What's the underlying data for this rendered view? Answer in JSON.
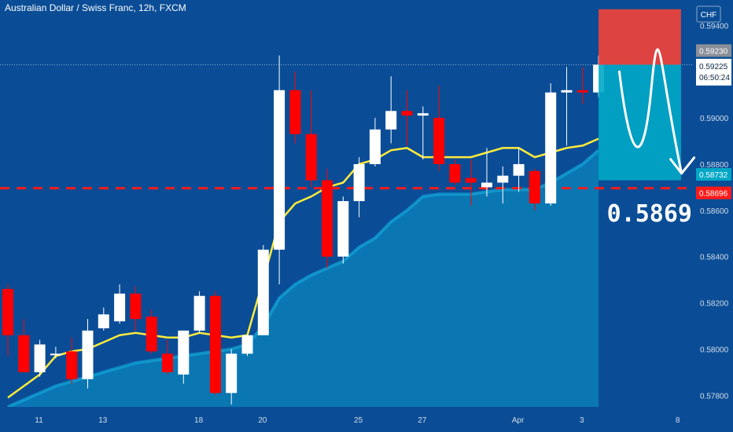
{
  "title": "Australian Dollar / Swiss Franc, 12h, FXCM",
  "currency_badge": "CHF",
  "countdown": "06:50:24",
  "big_label": "0.5869",
  "colors": {
    "background": "#0a4d96",
    "bull": "#ffffff",
    "bear": "#ff0000",
    "ma_line": "#ffeb3b",
    "area_fill": "#0a7fb8",
    "area_edge": "#12a8d8",
    "stop_zone": "#f44336",
    "target_zone": "#00a8c6",
    "level_line": "#ff1a1a"
  },
  "chart_data": {
    "type": "candlestick",
    "title": "Australian Dollar / Swiss Franc, 12h, FXCM",
    "xlabel": "",
    "ylabel": "",
    "ylim": [
      0.5775,
      0.5951
    ],
    "grid": false,
    "x_ticks": [
      {
        "label": "11",
        "index": 2
      },
      {
        "label": "13",
        "index": 6
      },
      {
        "label": "18",
        "index": 12
      },
      {
        "label": "20",
        "index": 16
      },
      {
        "label": "25",
        "index": 22
      },
      {
        "label": "27",
        "index": 26
      },
      {
        "label": "Apr",
        "index": 32
      },
      {
        "label": "3",
        "index": 36
      },
      {
        "label": "8",
        "index": 42
      }
    ],
    "y_ticks": [
      "0.57800",
      "0.58000",
      "0.58200",
      "0.58400",
      "0.58600",
      "0.58800",
      "0.59000",
      "0.59400"
    ],
    "candles": [
      {
        "o": 0.5826,
        "h": 0.5828,
        "l": 0.5797,
        "c": 0.5806
      },
      {
        "o": 0.5806,
        "h": 0.5813,
        "l": 0.579,
        "c": 0.579
      },
      {
        "o": 0.579,
        "h": 0.5804,
        "l": 0.5788,
        "c": 0.5802
      },
      {
        "o": 0.5798,
        "h": 0.5801,
        "l": 0.5796,
        "c": 0.5798
      },
      {
        "o": 0.5799,
        "h": 0.5805,
        "l": 0.5785,
        "c": 0.5787
      },
      {
        "o": 0.5787,
        "h": 0.5813,
        "l": 0.5783,
        "c": 0.5808
      },
      {
        "o": 0.5809,
        "h": 0.5818,
        "l": 0.5808,
        "c": 0.5815
      },
      {
        "o": 0.5812,
        "h": 0.5828,
        "l": 0.5811,
        "c": 0.5824
      },
      {
        "o": 0.5824,
        "h": 0.5827,
        "l": 0.5808,
        "c": 0.5813
      },
      {
        "o": 0.5814,
        "h": 0.5817,
        "l": 0.5798,
        "c": 0.5799
      },
      {
        "o": 0.5798,
        "h": 0.5804,
        "l": 0.5789,
        "c": 0.579
      },
      {
        "o": 0.5789,
        "h": 0.5808,
        "l": 0.5785,
        "c": 0.5808
      },
      {
        "o": 0.5808,
        "h": 0.5825,
        "l": 0.5807,
        "c": 0.5823
      },
      {
        "o": 0.5823,
        "h": 0.5825,
        "l": 0.578,
        "c": 0.5781
      },
      {
        "o": 0.5781,
        "h": 0.58,
        "l": 0.5776,
        "c": 0.5798
      },
      {
        "o": 0.5798,
        "h": 0.5806,
        "l": 0.5797,
        "c": 0.5806
      },
      {
        "o": 0.5806,
        "h": 0.5845,
        "l": 0.5806,
        "c": 0.5843
      },
      {
        "o": 0.5843,
        "h": 0.5927,
        "l": 0.5828,
        "c": 0.5912
      },
      {
        "o": 0.5912,
        "h": 0.592,
        "l": 0.5889,
        "c": 0.5893
      },
      {
        "o": 0.5893,
        "h": 0.5912,
        "l": 0.587,
        "c": 0.5873
      },
      {
        "o": 0.5873,
        "h": 0.5878,
        "l": 0.5835,
        "c": 0.584
      },
      {
        "o": 0.584,
        "h": 0.5866,
        "l": 0.5837,
        "c": 0.5864
      },
      {
        "o": 0.5864,
        "h": 0.5883,
        "l": 0.5857,
        "c": 0.588
      },
      {
        "o": 0.588,
        "h": 0.59,
        "l": 0.5879,
        "c": 0.5895
      },
      {
        "o": 0.5895,
        "h": 0.5918,
        "l": 0.5889,
        "c": 0.5903
      },
      {
        "o": 0.5903,
        "h": 0.5912,
        "l": 0.5888,
        "c": 0.5901
      },
      {
        "o": 0.5901,
        "h": 0.5905,
        "l": 0.5882,
        "c": 0.5902
      },
      {
        "o": 0.59,
        "h": 0.5914,
        "l": 0.5877,
        "c": 0.588
      },
      {
        "o": 0.588,
        "h": 0.5882,
        "l": 0.5871,
        "c": 0.5872
      },
      {
        "o": 0.5874,
        "h": 0.5882,
        "l": 0.5862,
        "c": 0.5872
      },
      {
        "o": 0.587,
        "h": 0.5887,
        "l": 0.5866,
        "c": 0.5872
      },
      {
        "o": 0.5872,
        "h": 0.5879,
        "l": 0.5863,
        "c": 0.5875
      },
      {
        "o": 0.5875,
        "h": 0.5887,
        "l": 0.5868,
        "c": 0.588
      },
      {
        "o": 0.5877,
        "h": 0.5878,
        "l": 0.586,
        "c": 0.5863
      },
      {
        "o": 0.5863,
        "h": 0.5915,
        "l": 0.5862,
        "c": 0.5911
      },
      {
        "o": 0.5911,
        "h": 0.5922,
        "l": 0.5888,
        "c": 0.5912
      },
      {
        "o": 0.5912,
        "h": 0.5922,
        "l": 0.5906,
        "c": 0.5911
      },
      {
        "o": 0.5911,
        "h": 0.5927,
        "l": 0.5909,
        "c": 0.5923
      }
    ],
    "moving_average": {
      "name": "",
      "values": [
        0.5779,
        0.5784,
        0.5789,
        0.5797,
        0.5799,
        0.58,
        0.5803,
        0.5806,
        0.5807,
        0.5806,
        0.5805,
        0.5805,
        0.5807,
        0.5806,
        0.5805,
        0.5806,
        0.583,
        0.5855,
        0.5863,
        0.5866,
        0.587,
        0.5872,
        0.588,
        0.5882,
        0.5886,
        0.5887,
        0.5883,
        0.5883,
        0.5883,
        0.5883,
        0.5885,
        0.5887,
        0.5887,
        0.5883,
        0.5885,
        0.5887,
        0.5888,
        0.5891
      ]
    },
    "area_band": {
      "values": [
        0.5775,
        0.5778,
        0.5781,
        0.5784,
        0.5786,
        0.5788,
        0.579,
        0.5792,
        0.5794,
        0.5795,
        0.5796,
        0.5797,
        0.5798,
        0.5799,
        0.58,
        0.5802,
        0.581,
        0.5822,
        0.5828,
        0.5832,
        0.5835,
        0.5838,
        0.5844,
        0.5848,
        0.5855,
        0.586,
        0.5866,
        0.5867,
        0.5867,
        0.5867,
        0.5868,
        0.5869,
        0.5869,
        0.5869,
        0.5872,
        0.5876,
        0.588,
        0.5886
      ]
    },
    "horizontal_levels": [
      {
        "name": "support",
        "value": 0.58696,
        "label": "0.58696",
        "style": "dashed"
      },
      {
        "name": "current",
        "value": 0.5923,
        "label": "0.59230",
        "style": "dotted"
      }
    ],
    "price_labels": [
      {
        "name": "price-tag-gray",
        "value": 0.5923,
        "text": "0.59230"
      },
      {
        "name": "price-tag-current",
        "value": 0.59225,
        "text": "0.59225"
      },
      {
        "name": "price-tag-cyan",
        "value": 0.58732,
        "text": "0.58732"
      },
      {
        "name": "price-tag-red",
        "value": 0.58696,
        "text": "0.58696"
      }
    ],
    "position": {
      "entry": 0.5923,
      "stop": 0.5947,
      "target": 0.5873,
      "start_index": 37,
      "end_index": 43
    },
    "projection_path": [
      {
        "index": 38.3,
        "value": 0.592
      },
      {
        "index": 39.0,
        "value": 0.588
      },
      {
        "index": 39.8,
        "value": 0.5876
      },
      {
        "index": 40.8,
        "value": 0.5922
      },
      {
        "index": 41.4,
        "value": 0.59
      },
      {
        "index": 42.2,
        "value": 0.5876
      }
    ]
  }
}
